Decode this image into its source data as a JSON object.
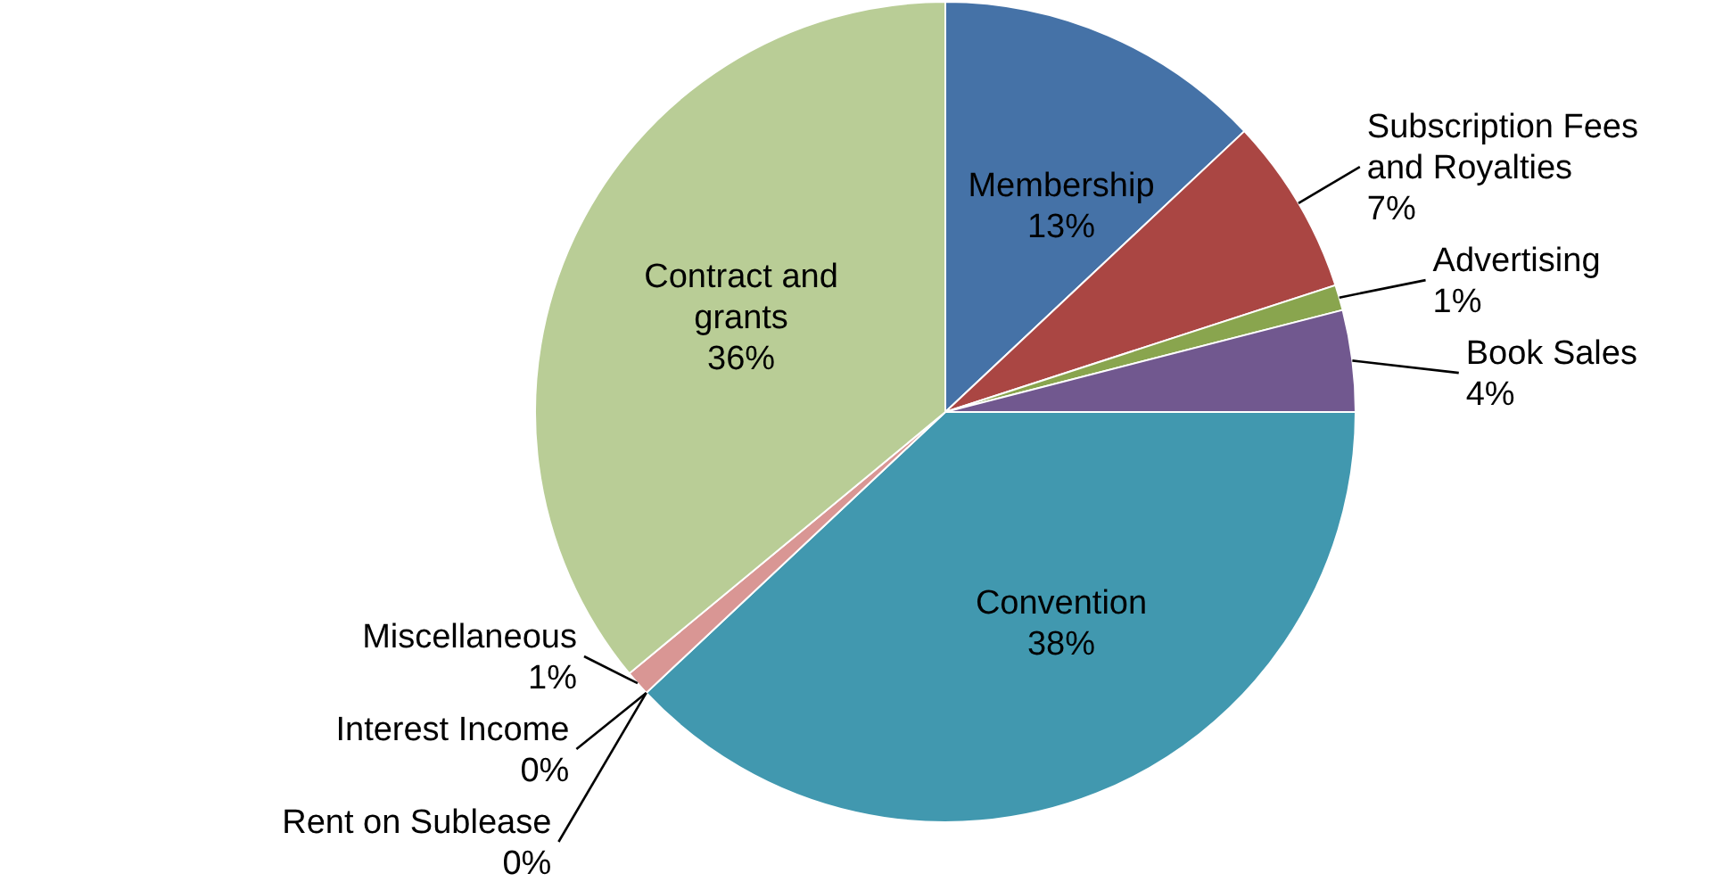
{
  "chart_data": {
    "type": "pie",
    "categories": [
      "Membership",
      "Subscription Fees and Royalties",
      "Advertising",
      "Book Sales",
      "Convention",
      "Interest Income",
      "Rent on Sublease",
      "Miscellaneous",
      "Contract and grants"
    ],
    "values": [
      13,
      7,
      1,
      4,
      38,
      0,
      0,
      1,
      36
    ],
    "value_labels": [
      "13%",
      "7%",
      "1%",
      "4%",
      "38%",
      "0%",
      "0%",
      "1%",
      "36%"
    ],
    "colors": [
      "#4572a7",
      "#aa4643",
      "#89a54e",
      "#71588f",
      "#4198af",
      "#db843d",
      "#93a9cf",
      "#d99694",
      "#b9cd96"
    ]
  }
}
